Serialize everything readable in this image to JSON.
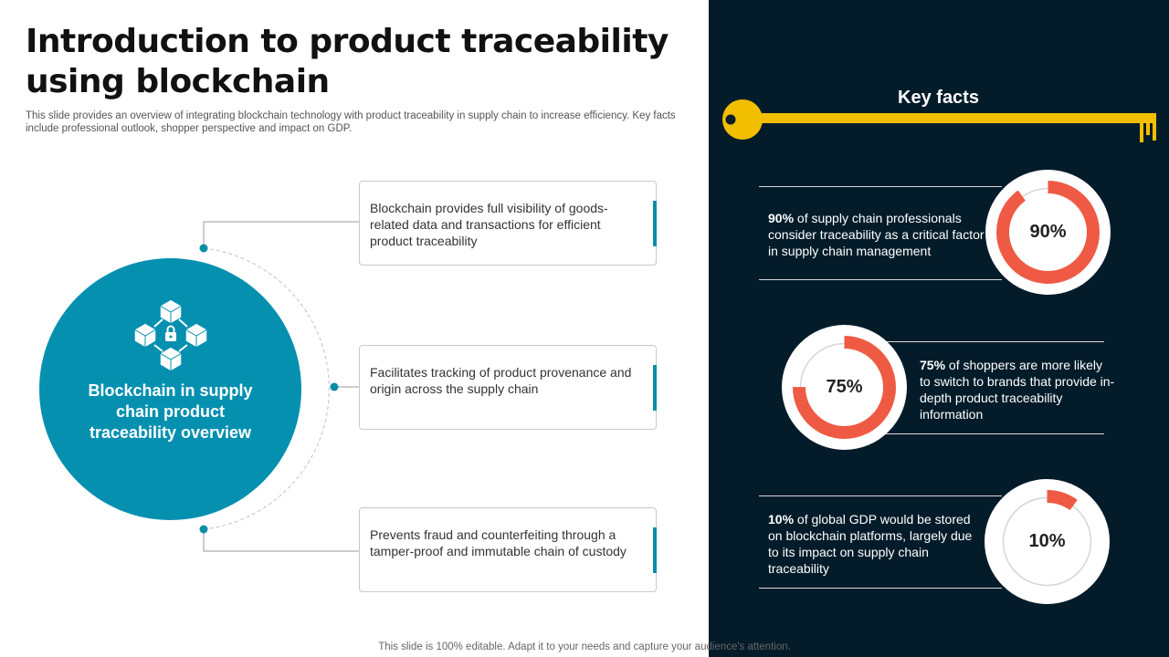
{
  "header": {
    "title": "Introduction to product traceability using blockchain",
    "subtitle": "This slide provides an overview of integrating blockchain technology with product traceability in supply chain to increase efficiency. Key facts include professional outlook, shopper perspective and impact on GDP."
  },
  "diagram": {
    "icon": "blockchain-lock-icon",
    "center_label": "Blockchain in supply chain product traceability overview",
    "points": [
      "Blockchain provides full visibility of goods-related data and transactions for efficient product traceability",
      "Facilitates tracking of product provenance and origin across the supply chain",
      "Prevents fraud and counterfeiting through a tamper-proof and immutable chain of custody"
    ]
  },
  "key_facts": {
    "title": "Key facts",
    "icon": "key-icon",
    "facts": [
      {
        "value": 90,
        "label": "90%",
        "text": " of supply chain professionals consider traceability as a critical factor in supply chain management"
      },
      {
        "value": 75,
        "label": "75%",
        "text": " of shoppers are more likely to switch to brands that provide in-depth product traceability information"
      },
      {
        "value": 10,
        "label": "10%",
        "text": " of global GDP would be stored on blockchain platforms, largely due to its impact on supply chain traceability"
      }
    ]
  },
  "colors": {
    "teal": "#0590b0",
    "dark": "#041c2a",
    "accent": "#ef5a45",
    "key": "#f2be00"
  },
  "footer": {
    "text": "This slide is 100% editable. Adapt it to your needs and capture your audience's attention."
  }
}
